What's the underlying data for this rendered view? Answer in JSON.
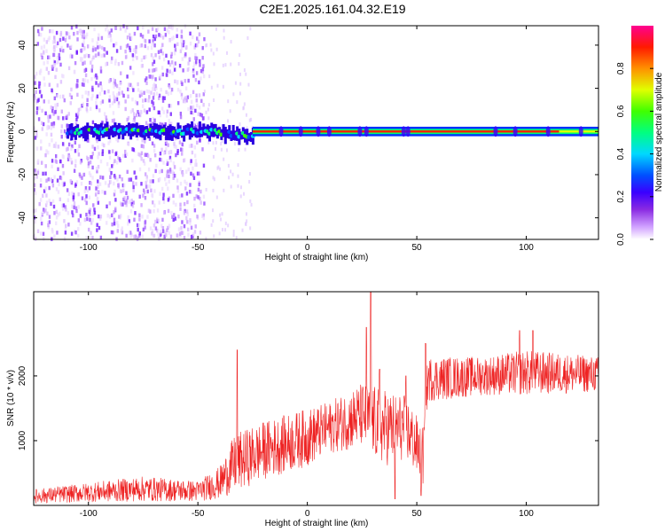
{
  "title": "C2E1.2025.161.04.32.E19",
  "chart_data": [
    {
      "type": "heatmap",
      "xlabel": "Height of straight line (km)",
      "ylabel": "Frequency (Hz)",
      "xlim": [
        -125,
        133
      ],
      "ylim": [
        -50,
        49
      ],
      "xticks": [
        -100,
        -50,
        0,
        50,
        100
      ],
      "yticks": [
        -40,
        -20,
        0,
        20,
        40
      ],
      "colorbar": {
        "label": "Normalized spectral amplitude",
        "range": [
          0,
          1
        ],
        "ticks": [
          "0.0",
          "0.2",
          "0.4",
          "0.6",
          "0.8"
        ],
        "colormap": [
          "#ffffff",
          "#c080ff",
          "#5a00ff",
          "#0000ff",
          "#00e0ff",
          "#00ff40",
          "#f0ff00",
          "#ff8000",
          "#ff0000",
          "#ff0080"
        ]
      },
      "trace": {
        "center_frequency": 0,
        "description_points": [
          {
            "x": -110,
            "amp": 0.45
          },
          {
            "x": -80,
            "amp": 0.55
          },
          {
            "x": -50,
            "amp": 0.45
          },
          {
            "x": -30,
            "amp": 0.5
          },
          {
            "x": -20,
            "amp": 0.85
          },
          {
            "x": 50,
            "amp": 0.9
          },
          {
            "x": 100,
            "amp": 0.9
          },
          {
            "x": 120,
            "amp": 0.6
          },
          {
            "x": 133,
            "amp": 0.55
          }
        ]
      }
    },
    {
      "type": "line",
      "xlabel": "Height of straight line (km)",
      "ylabel": "SNR (10 * v/v)",
      "xlim": [
        -125,
        133
      ],
      "ylim": [
        0,
        3300
      ],
      "xticks": [
        -100,
        -50,
        0,
        50,
        100
      ],
      "yticks": [
        1000,
        2000
      ],
      "series": [
        {
          "color": "#ee2222",
          "envelope": [
            {
              "x": -125,
              "low": 30,
              "high": 250
            },
            {
              "x": -100,
              "low": 50,
              "high": 350
            },
            {
              "x": -75,
              "low": 60,
              "high": 450
            },
            {
              "x": -50,
              "low": 60,
              "high": 380
            },
            {
              "x": -40,
              "low": 100,
              "high": 600
            },
            {
              "x": -33,
              "low": 200,
              "high": 1100
            },
            {
              "x": -20,
              "low": 400,
              "high": 1300
            },
            {
              "x": 0,
              "low": 600,
              "high": 1500
            },
            {
              "x": 10,
              "low": 800,
              "high": 1600
            },
            {
              "x": 25,
              "low": 900,
              "high": 1900
            },
            {
              "x": 35,
              "low": 600,
              "high": 1800
            },
            {
              "x": 45,
              "low": 700,
              "high": 1700
            },
            {
              "x": 53,
              "low": 300,
              "high": 1200
            },
            {
              "x": 55,
              "low": 1600,
              "high": 2300
            },
            {
              "x": 80,
              "low": 1700,
              "high": 2300
            },
            {
              "x": 100,
              "low": 1700,
              "high": 2400
            },
            {
              "x": 133,
              "low": 1750,
              "high": 2300
            }
          ],
          "spikes": [
            {
              "x": -32,
              "y": 2400
            },
            {
              "x": 27,
              "y": 2750
            },
            {
              "x": 29,
              "y": 3300
            },
            {
              "x": 33,
              "y": 2100
            },
            {
              "x": 45,
              "y": 2000
            },
            {
              "x": 54,
              "y": 2500
            },
            {
              "x": 97,
              "y": 2700
            },
            {
              "x": 103,
              "y": 2700
            },
            {
              "x": 40,
              "y": 100
            },
            {
              "x": 52,
              "y": 150
            }
          ]
        }
      ]
    }
  ]
}
